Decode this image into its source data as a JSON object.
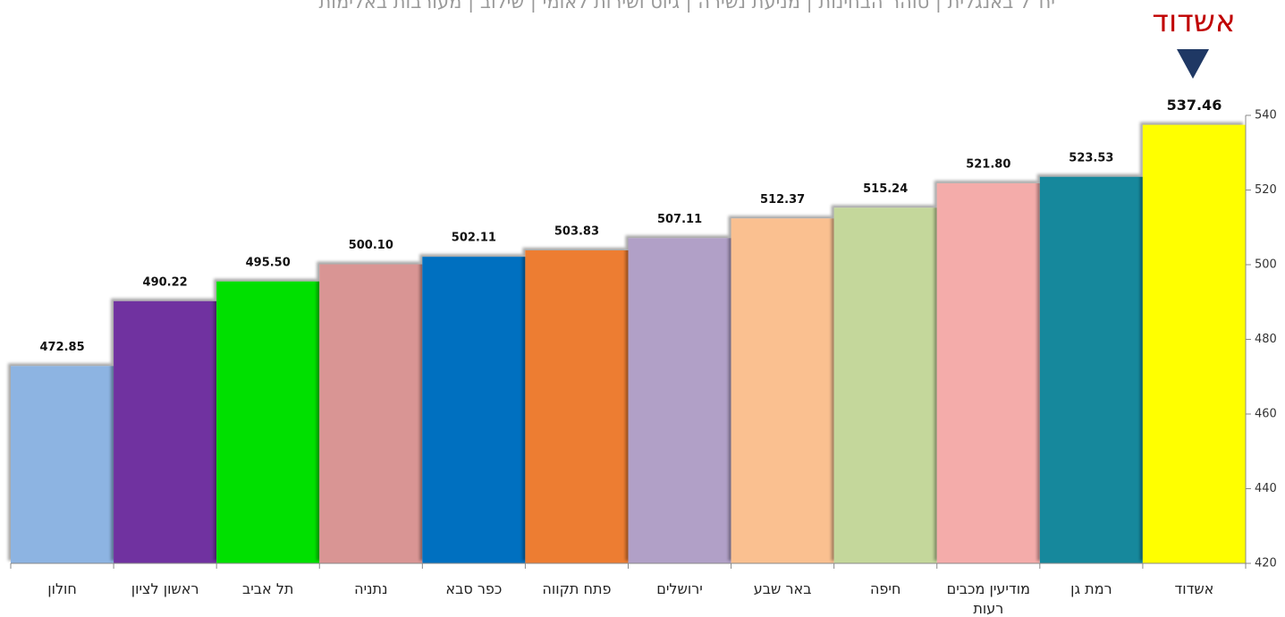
{
  "chart_data": {
    "type": "bar",
    "subtitle": "יח\"ל באנגלית | טוהר הבחינות | מניעת נשירה | גיוס ושירות לאומי | שילוב | מעורבות באלימות",
    "annotation": "אשדוד",
    "categories": [
      "חולון",
      "ראשון לציון",
      "תל אביב",
      "נתניה",
      "כפר סבא",
      "פתח תקווה",
      "ירושלים",
      "באר שבע",
      "חיפה",
      "מודיעין מכבים רעות",
      "רמת גן",
      "אשדוד"
    ],
    "values": [
      472.85,
      490.22,
      495.5,
      500.1,
      502.11,
      503.83,
      507.11,
      512.37,
      515.24,
      521.8,
      523.53,
      537.46
    ],
    "value_labels": [
      "472.85",
      "490.22",
      "495.50",
      "500.10",
      "502.11",
      "503.83",
      "507.11",
      "512.37",
      "515.24",
      "521.80",
      "523.53",
      "537.46"
    ],
    "colors": [
      "#8db4e2",
      "#7030a0",
      "#00e000",
      "#d99594",
      "#0070c0",
      "#ed7d31",
      "#b1a0c7",
      "#fac090",
      "#c4d79b",
      "#f4acaa",
      "#17889c",
      "#ffff00"
    ],
    "ylim": [
      420,
      540
    ],
    "yticks": [
      420,
      440,
      460,
      480,
      500,
      520,
      540
    ],
    "y_axis_side": "right"
  }
}
